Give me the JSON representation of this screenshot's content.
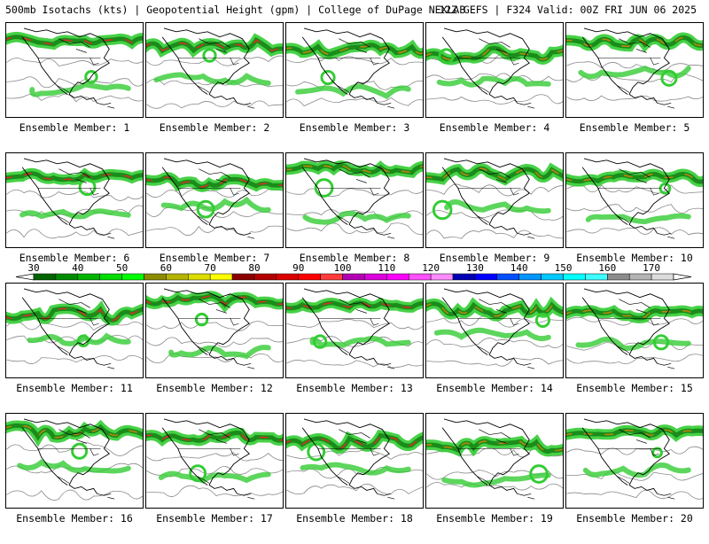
{
  "header": {
    "left": "500mb Isotachs (kts) | Geopotential Height (gpm) | College of DuPage NEXLAB",
    "right": "12Z GEFS | F324 Valid: 00Z FRI JUN 06 2025"
  },
  "member_label_prefix": "Ensemble Member:",
  "members": [
    {
      "id": 1,
      "label": "Ensemble Member: 1"
    },
    {
      "id": 2,
      "label": "Ensemble Member: 2"
    },
    {
      "id": 3,
      "label": "Ensemble Member: 3"
    },
    {
      "id": 4,
      "label": "Ensemble Member: 4"
    },
    {
      "id": 5,
      "label": "Ensemble Member: 5"
    },
    {
      "id": 6,
      "label": "Ensemble Member: 6"
    },
    {
      "id": 7,
      "label": "Ensemble Member: 7"
    },
    {
      "id": 8,
      "label": "Ensemble Member: 8"
    },
    {
      "id": 9,
      "label": "Ensemble Member: 9"
    },
    {
      "id": 10,
      "label": "Ensemble Member: 10"
    },
    {
      "id": 11,
      "label": "Ensemble Member: 11"
    },
    {
      "id": 12,
      "label": "Ensemble Member: 12"
    },
    {
      "id": 13,
      "label": "Ensemble Member: 13"
    },
    {
      "id": 14,
      "label": "Ensemble Member: 14"
    },
    {
      "id": 15,
      "label": "Ensemble Member: 15"
    },
    {
      "id": 16,
      "label": "Ensemble Member: 16"
    },
    {
      "id": 17,
      "label": "Ensemble Member: 17"
    },
    {
      "id": 18,
      "label": "Ensemble Member: 18"
    },
    {
      "id": 19,
      "label": "Ensemble Member: 19"
    },
    {
      "id": 20,
      "label": "Ensemble Member: 20"
    }
  ],
  "colorbar": {
    "tick_labels": [
      "30",
      "40",
      "50",
      "60",
      "70",
      "80",
      "90",
      "100",
      "110",
      "120",
      "130",
      "140",
      "150",
      "160",
      "170"
    ],
    "colors": [
      "#006400",
      "#008c00",
      "#00b400",
      "#00dc00",
      "#00ff00",
      "#8c8c00",
      "#b4b400",
      "#dcdc00",
      "#ffff00",
      "#8c0000",
      "#b40000",
      "#dc0000",
      "#ff0000",
      "#ff3c3c",
      "#b400b4",
      "#dc00dc",
      "#ff00ff",
      "#ff50ff",
      "#ff8cff",
      "#0000b4",
      "#0000ff",
      "#0050ff",
      "#0096ff",
      "#00c8ff",
      "#00ffff",
      "#3cffff",
      "#8c8c8c",
      "#b4b4b4",
      "#dcdcdc"
    ]
  },
  "map_colors": {
    "jet_light": "#33cc33",
    "jet_dark": "#1a8c1a",
    "jet_core": "#cc3322",
    "jet_core2": "#b8860b",
    "height_contour": "#888888",
    "coastline": "#000000"
  }
}
